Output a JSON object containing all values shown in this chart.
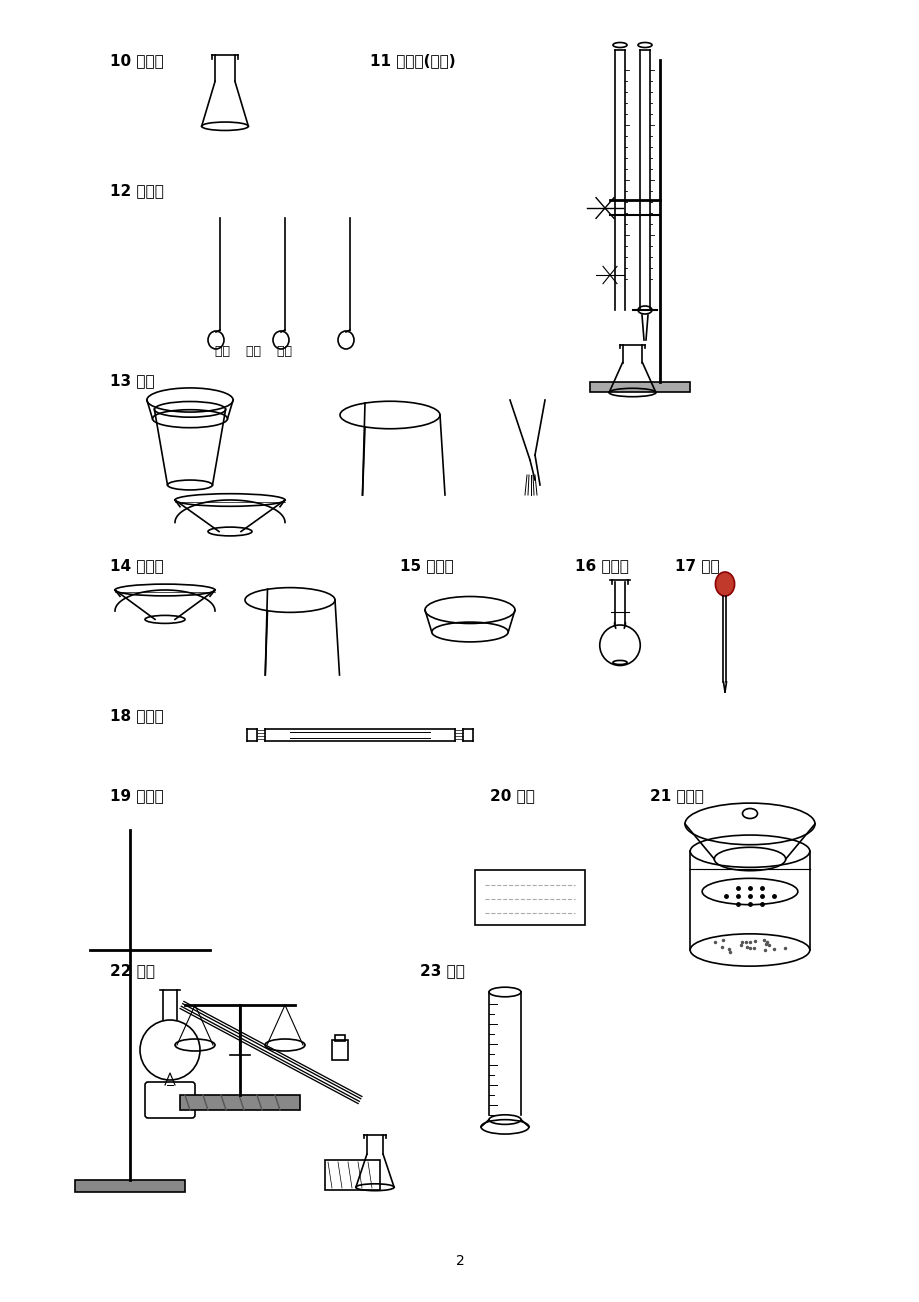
{
  "bg_color": "#ffffff",
  "text_color": "#000000",
  "line_color": "#000000",
  "page_number": "2",
  "labels": {
    "10": "10 锥形瓶",
    "11": "11 滴定管(两种)",
    "12": "12 燃烧匙",
    "12sub": "铜质    铁质    石英",
    "13": "13 坩埚",
    "14": "14 蒸发皿",
    "15": "15 表面皿",
    "16": "16 容量瓶",
    "17": "17 滴管",
    "18": "18 直玻管",
    "19": "19 冷凝器",
    "20": "20 水槽",
    "21": "21 干燥器",
    "22": "22 天平",
    "23": "23 量筒"
  }
}
